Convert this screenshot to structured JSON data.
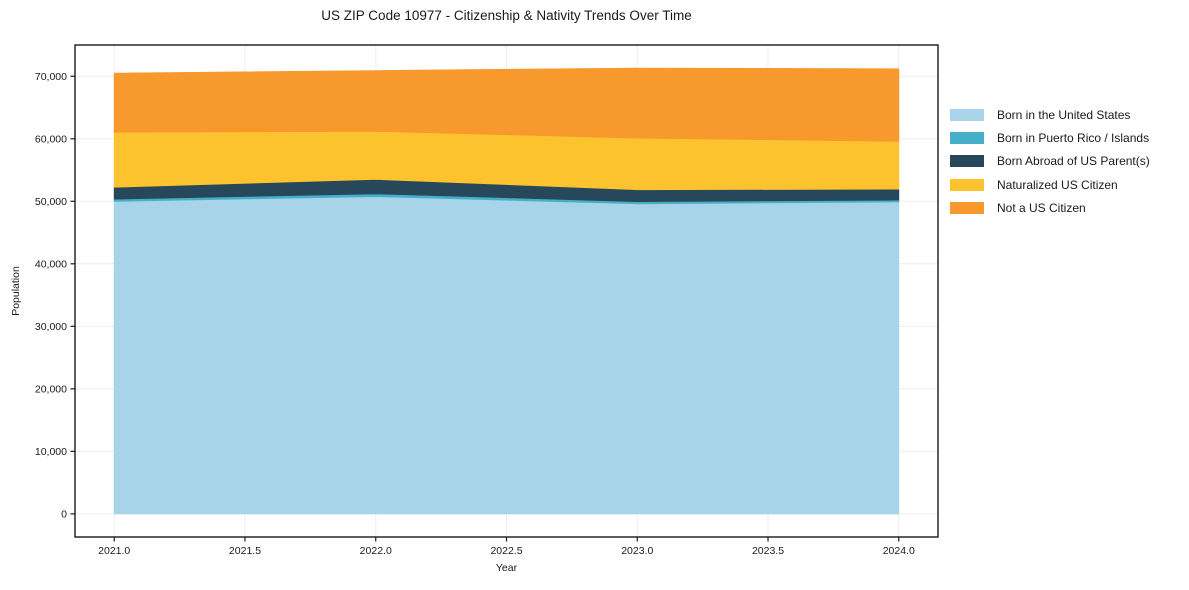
{
  "title": "US ZIP Code 10977 - Citizenship & Nativity Trends Over Time",
  "chart_data": {
    "type": "area",
    "stacked": true,
    "title": "US ZIP Code 10977 - Citizenship & Nativity Trends Over Time",
    "xlabel": "Year",
    "ylabel": "Population",
    "x": [
      2021,
      2022,
      2023,
      2024
    ],
    "series": [
      {
        "name": "Born in the United States",
        "color": "#a7d4e8",
        "values": [
          50000,
          50750,
          49600,
          49900
        ]
      },
      {
        "name": "Born in Puerto Rico / Islands",
        "color": "#46afc8",
        "values": [
          350,
          450,
          350,
          300
        ]
      },
      {
        "name": "Born Abroad of US Parent(s)",
        "color": "#27485a",
        "values": [
          1900,
          2300,
          1900,
          1750
        ]
      },
      {
        "name": "Naturalized US Citizen",
        "color": "#fdc32f",
        "values": [
          8800,
          7700,
          8250,
          7650
        ]
      },
      {
        "name": "Not a US Citizen",
        "color": "#f8992d",
        "values": [
          9450,
          9700,
          11200,
          11600
        ]
      }
    ],
    "xticks": [
      2021.0,
      2021.5,
      2022.0,
      2022.5,
      2023.0,
      2023.5,
      2024.0
    ],
    "xtick_labels": [
      "2021.0",
      "2021.5",
      "2022.0",
      "2022.5",
      "2023.0",
      "2023.5",
      "2024.0"
    ],
    "yticks": [
      0,
      10000,
      20000,
      30000,
      40000,
      50000,
      60000,
      70000
    ],
    "ytick_labels": [
      "0",
      "10,000",
      "20,000",
      "30,000",
      "40,000",
      "50,000",
      "60,000",
      "70,000"
    ],
    "xlim": [
      2020.85,
      2024.15
    ],
    "ylim": [
      -3700,
      75000
    ],
    "grid": true,
    "grid_color": "#ededed",
    "spine_color": "#1a1a1a",
    "legend_position": "outside-right"
  }
}
